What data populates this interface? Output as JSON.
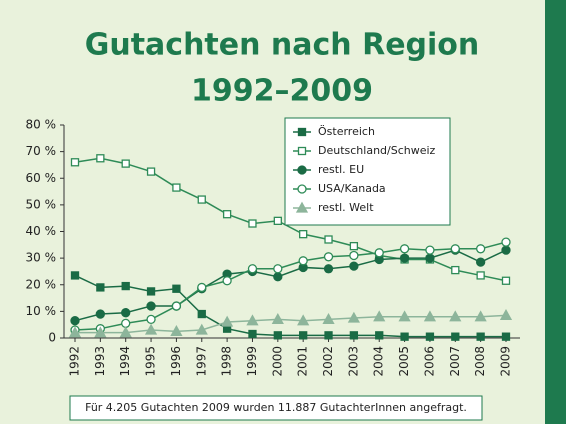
{
  "chart_data": {
    "type": "line",
    "title": "Gutachten nach Region",
    "subtitle": "1992–2009",
    "note": "Für 4.205 Gutachten 2009 wurden 11.887 GutachterInnen angefragt.",
    "categories": [
      "1992",
      "1993",
      "1994",
      "1995",
      "1996",
      "1997",
      "1998",
      "1999",
      "2000",
      "2001",
      "2002",
      "2003",
      "2004",
      "2005",
      "2006",
      "2007",
      "2008",
      "2009"
    ],
    "series": [
      {
        "name": "Österreich",
        "color": "#1a6b45",
        "marker": "square-filled",
        "values": [
          23.5,
          19,
          19.5,
          17.5,
          18.5,
          9,
          3.5,
          1.5,
          1,
          1,
          1,
          1,
          1,
          0.5,
          0.5,
          0.5,
          0.5,
          0.5
        ]
      },
      {
        "name": "Deutschland/Schweiz",
        "color": "#2e8b57",
        "marker": "square-open",
        "values": [
          66,
          67.5,
          65.5,
          62.5,
          56.5,
          52,
          46.5,
          43,
          44,
          39,
          37,
          34.5,
          31,
          29.5,
          29.5,
          25.5,
          23.5,
          21.5
        ]
      },
      {
        "name": "restl. EU",
        "color": "#1a6b45",
        "marker": "circle-filled",
        "values": [
          6.5,
          9,
          9.5,
          12,
          12,
          18.5,
          24,
          25,
          23,
          26.5,
          26,
          27,
          29.5,
          30,
          30,
          33,
          28.5,
          33
        ]
      },
      {
        "name": "USA/Kanada",
        "color": "#2e8b57",
        "marker": "circle-open",
        "values": [
          3,
          3.5,
          5.5,
          7,
          12,
          19,
          21.5,
          26,
          26,
          29,
          30.5,
          31,
          32,
          33.5,
          33,
          33.5,
          33.5,
          36
        ]
      },
      {
        "name": "restl. Welt",
        "color": "#8db59b",
        "marker": "triangle",
        "values": [
          2,
          2,
          2,
          3,
          2.5,
          3,
          6,
          6.5,
          7,
          6.5,
          7,
          7.5,
          8,
          8,
          8,
          8,
          8,
          8.5
        ]
      }
    ],
    "ylim": [
      0,
      80
    ],
    "yticks": [
      {
        "value": 0,
        "label": "0"
      },
      {
        "value": 10,
        "label": "10 %"
      },
      {
        "value": 20,
        "label": "20 %"
      },
      {
        "value": 30,
        "label": "30 %"
      },
      {
        "value": 40,
        "label": "40 %"
      },
      {
        "value": 50,
        "label": "50 %"
      },
      {
        "value": 60,
        "label": "60 %"
      },
      {
        "value": 70,
        "label": "70 %"
      },
      {
        "value": 80,
        "label": "80 %"
      }
    ],
    "grid": false,
    "legend": "top-right"
  }
}
